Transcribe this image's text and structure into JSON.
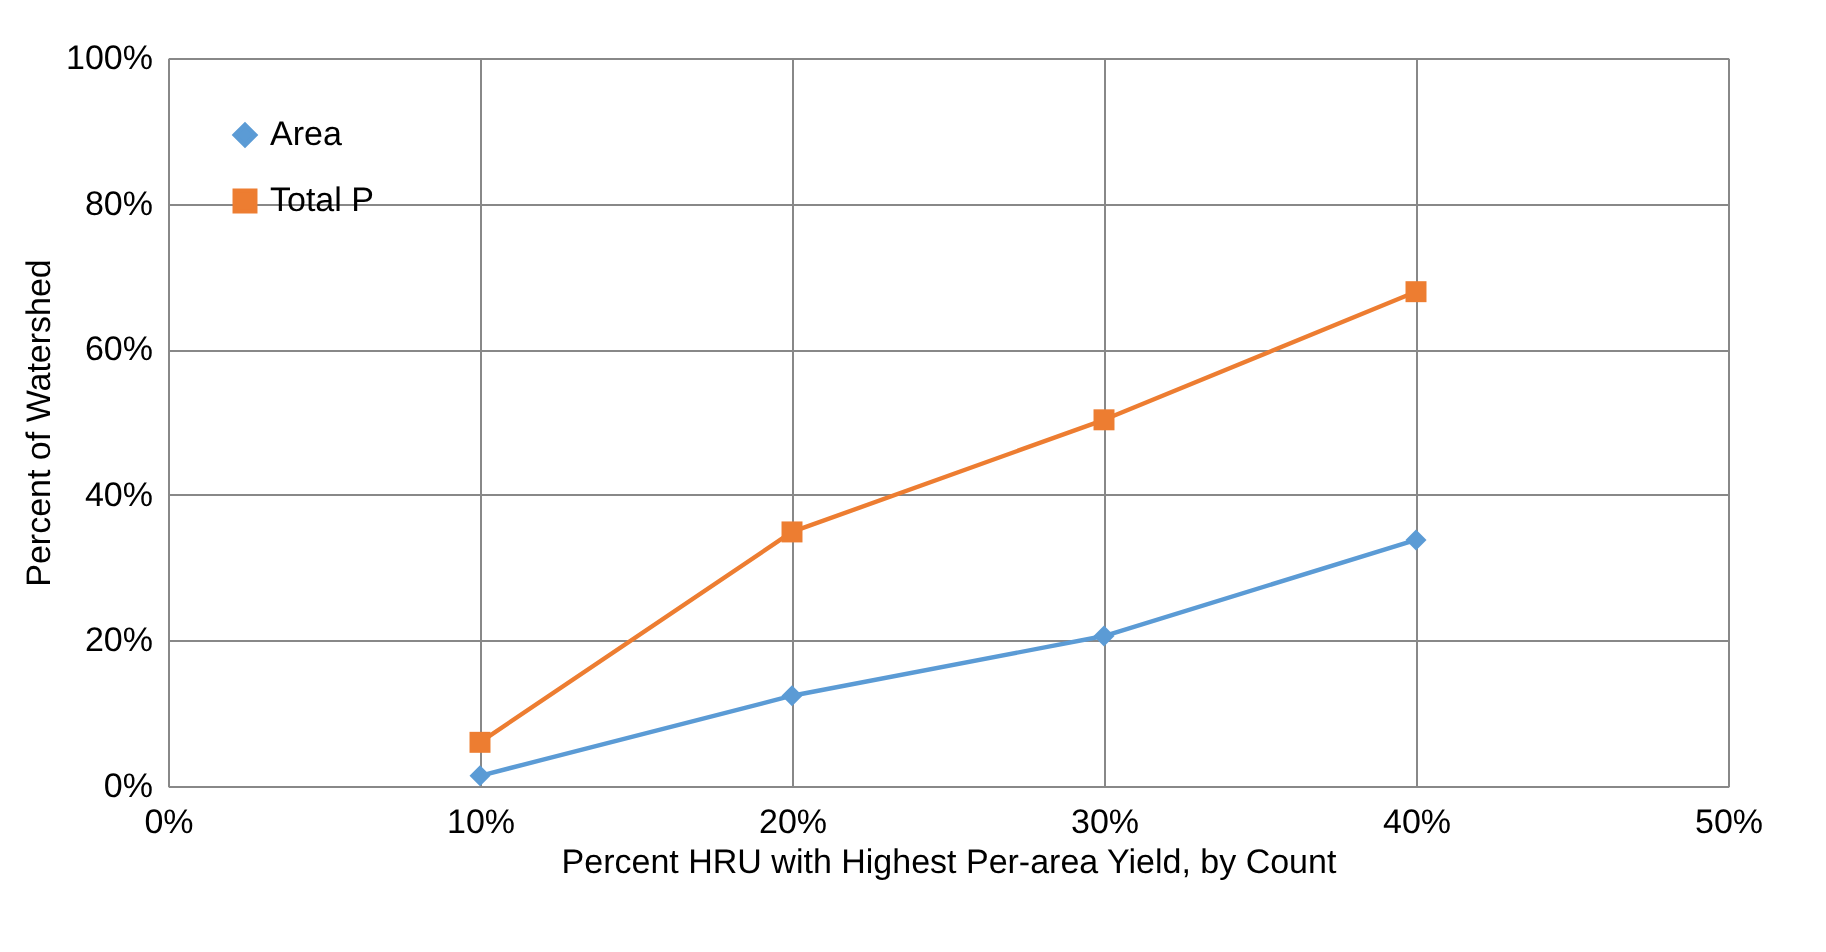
{
  "chart_data": {
    "type": "line",
    "xlabel": "Percent HRU with Highest Per-area Yield, by Count",
    "ylabel": "Percent of Watershed",
    "x": [
      10,
      20,
      30,
      40
    ],
    "series": [
      {
        "name": "Area",
        "color": "#5b9bd5",
        "marker": "diamond",
        "values": [
          1.4,
          12.4,
          20.6,
          33.8
        ]
      },
      {
        "name": "Total P",
        "color": "#ed7d31",
        "marker": "square",
        "values": [
          6.0,
          34.9,
          50.3,
          67.9
        ]
      }
    ],
    "xlim": [
      0,
      50
    ],
    "xticks": [
      {
        "value": 0,
        "label": "0%"
      },
      {
        "value": 10,
        "label": "10%"
      },
      {
        "value": 20,
        "label": "20%"
      },
      {
        "value": 30,
        "label": "30%"
      },
      {
        "value": 40,
        "label": "40%"
      },
      {
        "value": 50,
        "label": "50%"
      }
    ],
    "ylim": [
      0,
      100
    ],
    "yticks": [
      {
        "value": 0,
        "label": "0%"
      },
      {
        "value": 20,
        "label": "20%"
      },
      {
        "value": 40,
        "label": "40%"
      },
      {
        "value": 60,
        "label": "60%"
      },
      {
        "value": 80,
        "label": "80%"
      },
      {
        "value": 100,
        "label": "100%"
      }
    ],
    "grid": true,
    "legend": "top left",
    "line_style": "solid"
  }
}
